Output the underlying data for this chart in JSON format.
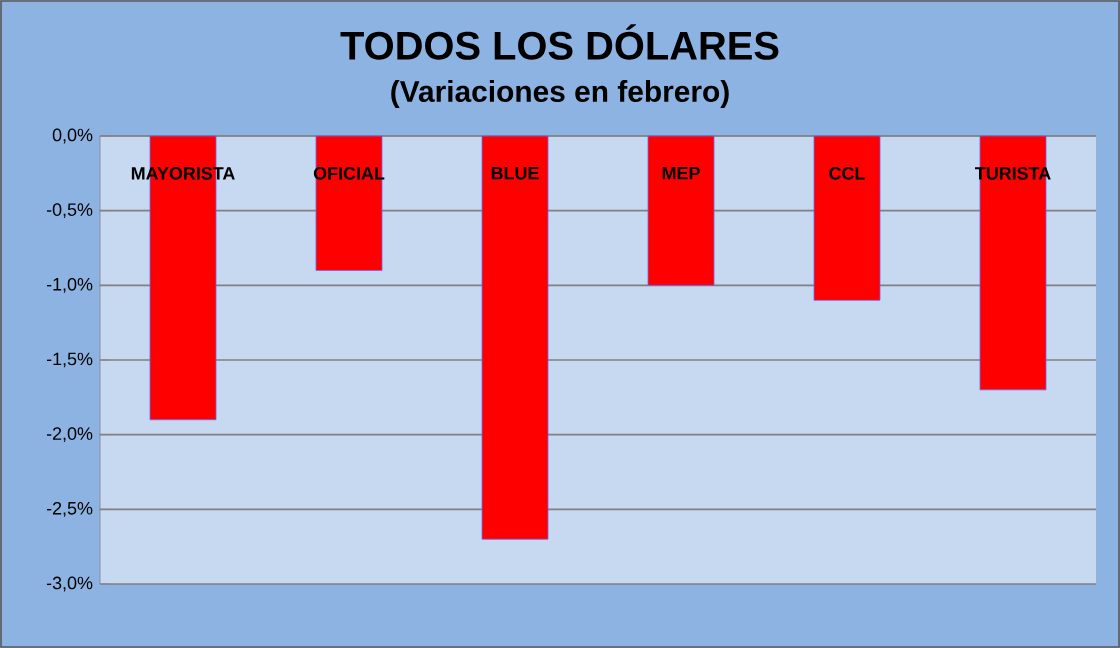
{
  "chart_data": {
    "type": "bar",
    "title": "TODOS LOS DÓLARES",
    "subtitle": "(Variaciones  en febrero)",
    "categories": [
      "MAYORISTA",
      "OFICIAL",
      "BLUE",
      "MEP",
      "CCL",
      "TURISTA"
    ],
    "values": [
      -1.9,
      -0.9,
      -2.7,
      -1.0,
      -1.1,
      -1.7
    ],
    "color": "#ff0000",
    "ylim": [
      -3.0,
      0.0
    ],
    "yticks": [
      {
        "value": -3.0,
        "label": "-3,0%"
      },
      {
        "value": -2.5,
        "label": "-2,5%"
      },
      {
        "value": -2.0,
        "label": "-2,0%"
      },
      {
        "value": -1.5,
        "label": "-1,5%"
      },
      {
        "value": -1.0,
        "label": "-1,0%"
      },
      {
        "value": -0.5,
        "label": "-0,5%"
      },
      {
        "value": 0.0,
        "label": "0,0%"
      }
    ],
    "grid": "y",
    "legend": false
  }
}
